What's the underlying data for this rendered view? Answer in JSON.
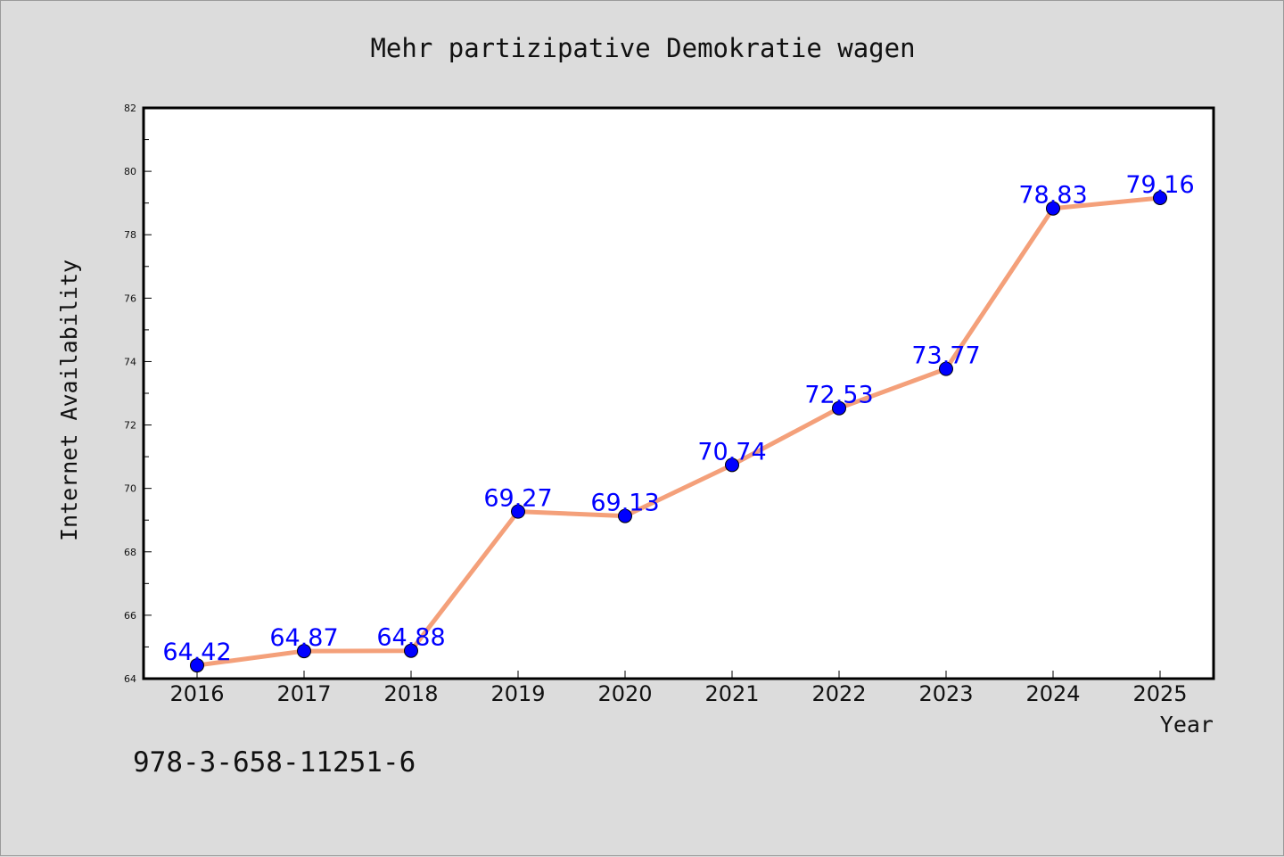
{
  "chart_data": {
    "type": "line",
    "title": "Mehr partizipative Demokratie wagen",
    "xlabel": "Year",
    "ylabel": "Internet Availability",
    "categories": [
      "2016",
      "2017",
      "2018",
      "2019",
      "2020",
      "2021",
      "2022",
      "2023",
      "2024",
      "2025"
    ],
    "series": [
      {
        "values": [
          64.42,
          64.87,
          64.88,
          69.27,
          69.13,
          70.74,
          72.53,
          73.77,
          78.83,
          79.16
        ]
      }
    ],
    "data_labels": [
      "64.42",
      "64.87",
      "64.88",
      "69.27",
      "69.13",
      "70.74",
      "72.53",
      "73.77",
      "78.83",
      "79.16"
    ],
    "ylim": [
      64,
      82
    ],
    "yticks": [
      "64",
      "66",
      "68",
      "70",
      "72",
      "74",
      "76",
      "78",
      "80",
      "82"
    ],
    "grid": false,
    "line_color": "#f4a07a",
    "marker_color": "#0000ff",
    "label_color": "#0000ff"
  },
  "annotation": "978-3-658-11251-6"
}
